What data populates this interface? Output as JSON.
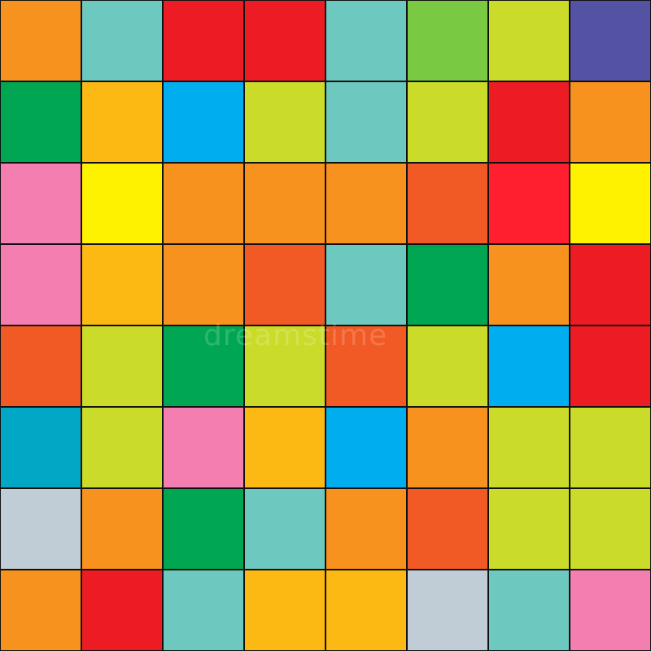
{
  "palette": {
    "O": "#F7921E",
    "T": "#6DC8BF",
    "R": "#ED1C24",
    "G": "#7AC943",
    "L": "#CBDB2A",
    "P": "#5352A3",
    "E": "#00A651",
    "A": "#FDB913",
    "B": "#00AEEF",
    "K": "#F57EB0",
    "Y": "#FFF200",
    "X": "#F15A24",
    "S": "#FF1F2E",
    "C": "#00A8C6",
    "Z": "#C0CCD6"
  },
  "rows": [
    [
      "O",
      "T",
      "R",
      "R",
      "T",
      "G",
      "L",
      "P"
    ],
    [
      "E",
      "A",
      "B",
      "L",
      "T",
      "L",
      "R",
      "O"
    ],
    [
      "K",
      "Y",
      "O",
      "O",
      "O",
      "X",
      "S",
      "Y"
    ],
    [
      "K",
      "A",
      "O",
      "X",
      "T",
      "E",
      "O",
      "R"
    ],
    [
      "X",
      "L",
      "E",
      "L",
      "X",
      "L",
      "B",
      "R"
    ],
    [
      "C",
      "L",
      "K",
      "A",
      "B",
      "O",
      "L",
      "L"
    ],
    [
      "Z",
      "O",
      "E",
      "T",
      "O",
      "X",
      "L",
      "L"
    ],
    [
      "O",
      "R",
      "T",
      "A",
      "A",
      "Z",
      "T",
      "K"
    ]
  ],
  "watermark": "dreamstime"
}
